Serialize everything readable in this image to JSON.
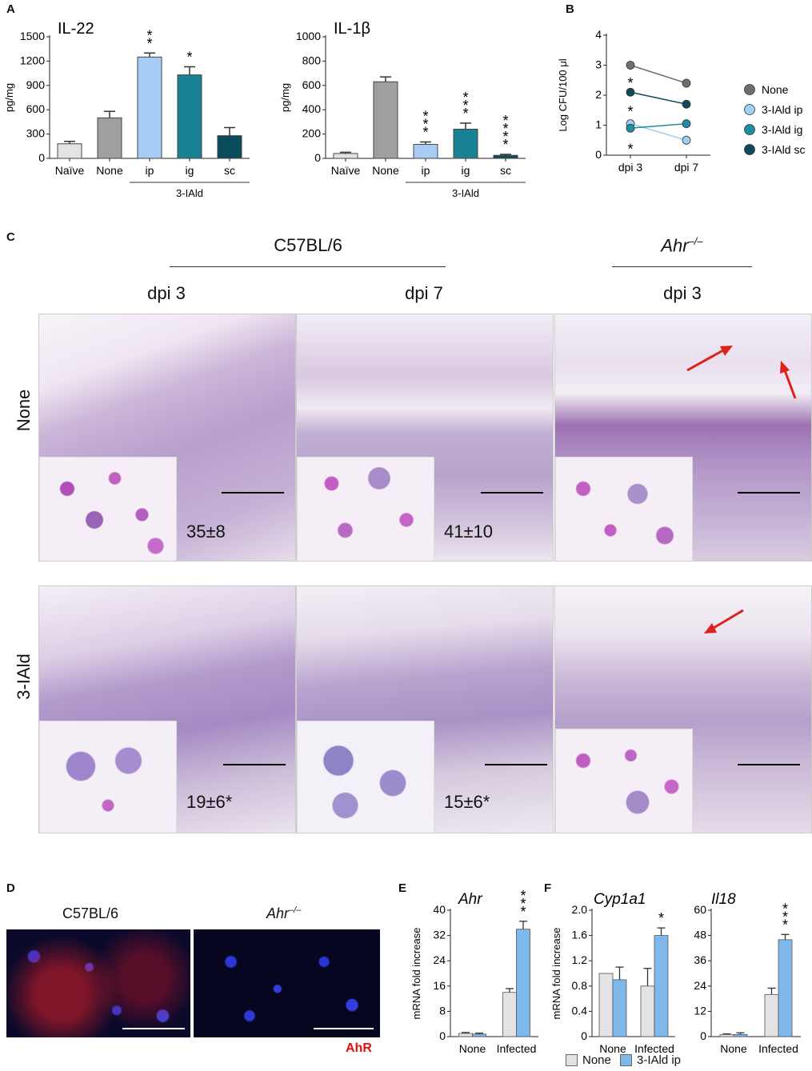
{
  "panels": {
    "A": "A",
    "B": "B",
    "C": "C",
    "D": "D",
    "E": "E",
    "F": "F"
  },
  "chart_data": [
    {
      "id": "A-IL22",
      "type": "bar",
      "title": "IL-22",
      "ylabel": "pg/mg",
      "categories": [
        "Naïve",
        "None",
        "ip",
        "ig",
        "sc"
      ],
      "values": [
        180,
        500,
        1250,
        1030,
        280
      ],
      "errors": [
        30,
        80,
        50,
        100,
        100
      ],
      "stars": [
        "",
        "",
        "**",
        "*",
        ""
      ],
      "colors": [
        "#e3e3e3",
        "#9f9f9f",
        "#a8cdf5",
        "#1a8194",
        "#0b4c5c"
      ],
      "ylim": [
        0,
        1500
      ],
      "yticks": [
        0,
        300,
        600,
        900,
        1200,
        1500
      ],
      "group_label": "3-IAld"
    },
    {
      "id": "A-IL1b",
      "type": "bar",
      "title": "IL-1β",
      "ylabel": "pg/mg",
      "categories": [
        "Naïve",
        "None",
        "ip",
        "ig",
        "sc"
      ],
      "values": [
        40,
        630,
        115,
        240,
        25
      ],
      "errors": [
        10,
        40,
        20,
        50,
        8
      ],
      "stars": [
        "",
        "",
        "***",
        "***",
        "****"
      ],
      "colors": [
        "#e3e3e3",
        "#9f9f9f",
        "#a8cdf5",
        "#1a8194",
        "#0b4c5c"
      ],
      "ylim": [
        0,
        1000
      ],
      "yticks": [
        0,
        200,
        400,
        600,
        800,
        1000
      ],
      "group_label": "3-IAld"
    },
    {
      "id": "B",
      "type": "line",
      "ylabel": "Log CFU/100 μl",
      "categories": [
        "dpi 3",
        "dpi 7"
      ],
      "ylim": [
        0,
        4
      ],
      "yticks": [
        0,
        1,
        2,
        3,
        4
      ],
      "series": [
        {
          "name": "None",
          "values": [
            3.0,
            2.4
          ],
          "errors": [
            0.15,
            0.15
          ],
          "color": "#6f6f6f"
        },
        {
          "name": "3-IAld ip",
          "values": [
            1.05,
            0.5
          ],
          "errors": [
            0.12,
            0.15
          ],
          "color": "#9fd0f0"
        },
        {
          "name": "3-IAld ig",
          "values": [
            0.9,
            1.05
          ],
          "errors": [
            0.12,
            0.15
          ],
          "color": "#1e8fa3"
        },
        {
          "name": "3-IAld sc",
          "values": [
            2.1,
            1.7
          ],
          "errors": [
            0.05,
            0.05
          ],
          "color": "#0d4a5a"
        }
      ],
      "stars": [
        "*",
        "*",
        "*"
      ]
    },
    {
      "id": "E-Ahr",
      "type": "bar",
      "title": "Ahr",
      "ylabel": "mRNA fold increase",
      "categories": [
        "None",
        "Infected"
      ],
      "series": [
        {
          "name": "None",
          "values": [
            1,
            14
          ],
          "errors": [
            0.3,
            1.2
          ],
          "color": "#e3e3e3"
        },
        {
          "name": "3-IAld ip",
          "values": [
            0.8,
            34
          ],
          "errors": [
            0.3,
            2.5
          ],
          "color": "#7fb8ea"
        }
      ],
      "stars": [
        "",
        "***"
      ],
      "ylim": [
        0,
        40
      ],
      "yticks": [
        0,
        8,
        16,
        24,
        32,
        40
      ]
    },
    {
      "id": "F-Cyp1a1",
      "type": "bar",
      "title": "Cyp1a1",
      "ylabel": "mRNA fold increase",
      "categories": [
        "None",
        "Infected"
      ],
      "series": [
        {
          "name": "None",
          "values": [
            1.0,
            0.8
          ],
          "errors": [
            0,
            0.28
          ],
          "color": "#e3e3e3"
        },
        {
          "name": "3-IAld ip",
          "values": [
            0.9,
            1.6
          ],
          "errors": [
            0.2,
            0.12
          ],
          "color": "#7fb8ea"
        }
      ],
      "stars": [
        "",
        "*"
      ],
      "ylim": [
        0,
        2.0
      ],
      "yticks": [
        "0",
        "0.4",
        "0.8",
        "1.2",
        "1.6",
        "2.0"
      ]
    },
    {
      "id": "F-Il18",
      "type": "bar",
      "title": "Il18",
      "categories": [
        "None",
        "Infected"
      ],
      "series": [
        {
          "name": "None",
          "values": [
            1,
            20
          ],
          "errors": [
            0.3,
            3
          ],
          "color": "#e3e3e3"
        },
        {
          "name": "3-IAld ip",
          "values": [
            1,
            46
          ],
          "errors": [
            0.8,
            2.5
          ],
          "color": "#7fb8ea"
        }
      ],
      "stars": [
        "",
        "***"
      ],
      "ylim": [
        0,
        60
      ],
      "yticks": [
        0,
        12,
        24,
        36,
        48,
        60
      ]
    }
  ],
  "panelC": {
    "strain_left": "C57BL/6",
    "strain_right": "Ahr",
    "strain_right_sup": "–/–",
    "col_labels": [
      "dpi 3",
      "dpi 7",
      "dpi 3"
    ],
    "row_labels": [
      "None",
      "3-IAld"
    ],
    "counts": [
      "35±8",
      "41±10",
      "19±6*",
      "15±6*"
    ]
  },
  "panelD": {
    "left_label": "C57BL/6",
    "right_label": "Ahr",
    "right_sup": "–/–",
    "stain_label": "AhR"
  },
  "legendF": [
    "None",
    "3-IAld ip"
  ]
}
